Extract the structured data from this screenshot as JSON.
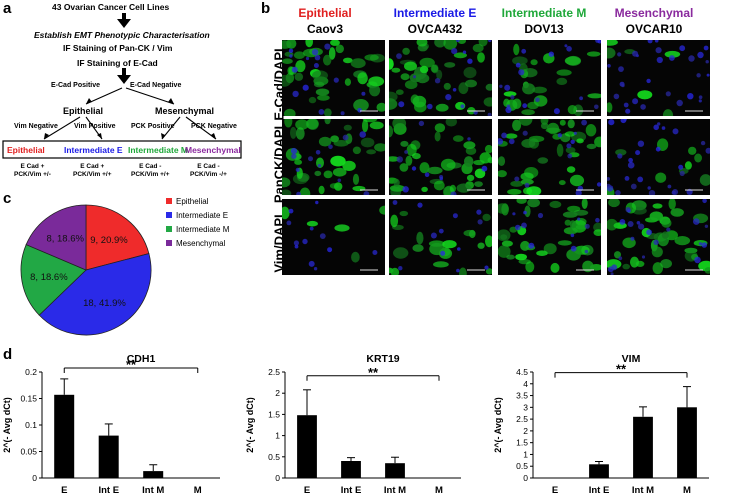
{
  "panels": {
    "a": "a",
    "b": "b",
    "c": "c",
    "d": "d"
  },
  "flow": {
    "top": "43 Ovarian Cancer Cell Lines",
    "step1": "Establish EMT Phenotypic Characterisation",
    "step2": "IF Staining of Pan-CK / Vim",
    "step3": "IF Staining of E-Cad",
    "ecad_pos": "E-Cad Positive",
    "ecad_neg": "E-Cad Negative",
    "epithelial": "Epithelial",
    "mesenchymal": "Mesenchymal",
    "vim_neg": "Vim Negative",
    "vim_pos": "Vim Positive",
    "pck_pos": "PCK Positive",
    "pck_neg": "PCK Negative",
    "classes": [
      {
        "name": "Epithelial",
        "color": "#e02020",
        "d1": "E Cad +",
        "d2": "PCK/Vim +/-"
      },
      {
        "name": "Intermediate E",
        "color": "#1a1ae6",
        "d1": "E Cad +",
        "d2": "PCK/Vim +/+"
      },
      {
        "name": "Intermediate M",
        "color": "#1fa83a",
        "d1": "E Cad -",
        "d2": "PCK/Vim +/+"
      },
      {
        "name": "Mesenchymal",
        "color": "#8a2a9e",
        "d1": "E Cad -",
        "d2": "PCK/Vim -/+"
      }
    ]
  },
  "micro": {
    "columns": [
      {
        "phenotype": "Epithelial",
        "line": "Caov3",
        "color": "#e02020"
      },
      {
        "phenotype": "Intermediate E",
        "line": "OVCA432",
        "color": "#1a1ae6"
      },
      {
        "phenotype": "Intermediate M",
        "line": "DOV13",
        "color": "#1fa83a"
      },
      {
        "phenotype": "Mesenchymal",
        "line": "OVCAR10",
        "color": "#8a2a9e"
      }
    ],
    "rows": [
      "E-Cad/DAPI",
      "PanCK/DAPI",
      "Vim/DAPI"
    ]
  },
  "chart_data": [
    {
      "type": "pie",
      "labels": [
        "Epithelial",
        "Intermediate E",
        "Intermediate M",
        "Mesenchymal"
      ],
      "values": [
        9,
        18,
        8,
        8
      ],
      "slice_labels": [
        "9, 20.9%",
        "18, 41.9%",
        "8, 18.6%",
        "8, 18.6%"
      ],
      "colors": [
        "#ef2b2b",
        "#2a2ae8",
        "#22a845",
        "#7a2a9a"
      ],
      "legend": "right"
    },
    {
      "type": "bar",
      "title": "CDH1",
      "ylabel": "2^(- Avg dCt)",
      "categories": [
        "E",
        "Int E",
        "Int M",
        "M"
      ],
      "values": [
        0.157,
        0.08,
        0.013,
        0.0
      ],
      "errors": [
        0.03,
        0.022,
        0.012,
        0.0
      ],
      "ylim": [
        0,
        0.2
      ],
      "yticks": [
        "0",
        "0.05",
        "0.1",
        "0.15",
        "0.2"
      ],
      "ytick_values": [
        0,
        0.05,
        0.1,
        0.15,
        0.2
      ],
      "annotation": "**"
    },
    {
      "type": "bar",
      "title": "KRT19",
      "ylabel": "2^(- Avg dCt)",
      "categories": [
        "E",
        "Int E",
        "Int M",
        "M"
      ],
      "values": [
        1.48,
        0.4,
        0.35,
        0.0
      ],
      "errors": [
        0.6,
        0.08,
        0.14,
        0.0
      ],
      "ylim": [
        0,
        2.5
      ],
      "yticks": [
        "0",
        "0.5",
        "1",
        "1.5",
        "2",
        "2.5"
      ],
      "ytick_values": [
        0,
        0.5,
        1,
        1.5,
        2,
        2.5
      ],
      "annotation": "**"
    },
    {
      "type": "bar",
      "title": "VIM",
      "ylabel": "2^(- Avg dCt)",
      "categories": [
        "E",
        "Int E",
        "Int M",
        "M"
      ],
      "values": [
        0.0,
        0.58,
        2.6,
        3.0
      ],
      "errors": [
        0.0,
        0.12,
        0.42,
        0.88
      ],
      "ylim": [
        0,
        4.5
      ],
      "yticks": [
        "0",
        "0.5",
        "1",
        "1.5",
        "2",
        "2.5",
        "3",
        "3.5",
        "4",
        "4.5"
      ],
      "ytick_values": [
        0,
        0.5,
        1,
        1.5,
        2,
        2.5,
        3,
        3.5,
        4,
        4.5
      ],
      "annotation": "**"
    }
  ]
}
